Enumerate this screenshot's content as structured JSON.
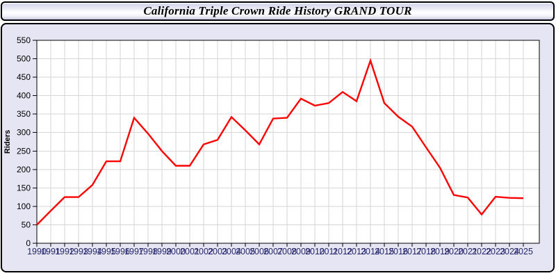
{
  "header": {
    "title": "California Triple Crown Ride History GRAND TOUR"
  },
  "chart_data": {
    "type": "line",
    "title": "California Triple Crown Ride History GRAND TOUR",
    "xlabel": "",
    "ylabel": "Riders",
    "ylim": [
      0,
      550
    ],
    "yticks": [
      0,
      50,
      100,
      150,
      200,
      250,
      300,
      350,
      400,
      450,
      500,
      550
    ],
    "grid": true,
    "legend_position": "none",
    "x": [
      1990,
      1991,
      1992,
      1993,
      1994,
      1995,
      1996,
      1997,
      1998,
      1999,
      2000,
      2001,
      2002,
      2003,
      2004,
      2005,
      2006,
      2007,
      2008,
      2009,
      2010,
      2011,
      2012,
      2013,
      2014,
      2015,
      2016,
      2017,
      2018,
      2019,
      2020,
      2021,
      2022,
      2023,
      2024,
      2025
    ],
    "series": [
      {
        "name": "Riders",
        "color": "#ff0000",
        "values": [
          50,
          88,
          125,
          125,
          158,
          222,
          222,
          340,
          297,
          250,
          210,
          210,
          268,
          280,
          342,
          306,
          268,
          338,
          340,
          392,
          373,
          380,
          410,
          385,
          495,
          380,
          343,
          316,
          260,
          205,
          131,
          124,
          78,
          126,
          123,
          122
        ]
      }
    ],
    "colors": {
      "panel_background": "#e5e5f3",
      "plot_background": "#ffffff",
      "gridline": "#d6d6d6",
      "axis": "#000000",
      "x_tick_label": "#26266e",
      "y_tick_label": "#000000",
      "line": "#ff0000"
    }
  }
}
